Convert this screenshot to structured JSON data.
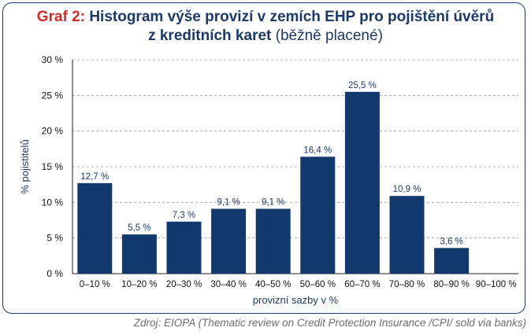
{
  "title": {
    "label": "Graf 2:",
    "main_line1": "Histogram výše provizí v zemích EHP pro pojištění úvěrů",
    "main_line2": "z kreditních karet",
    "sub": "(běžně placené)"
  },
  "source": "Zdroj: EIOPA (Thematic review on Credit Protection Insurance /CPI/ sold via banks)",
  "colors": {
    "bar": "#12396e",
    "title": "#1b3a6b",
    "accent": "#d42a24",
    "grid": "#9a9a9a"
  },
  "chart_data": {
    "type": "bar",
    "title": "Histogram výše provizí v zemích EHP pro pojištění úvěrů z kreditních karet (běžně placené)",
    "xlabel": "provizní sazby v %",
    "ylabel": "% pojistitelů",
    "ylim": [
      0,
      30
    ],
    "yticks": [
      0,
      5,
      10,
      15,
      20,
      25,
      30
    ],
    "ytick_labels": [
      "0 %",
      "5 %",
      "10 %",
      "15 %",
      "20 %",
      "25 %",
      "30 %"
    ],
    "grid": true,
    "categories": [
      "0–10 %",
      "10–20 %",
      "20–30 %",
      "30–40 %",
      "40–50 %",
      "50–60 %",
      "60–70 %",
      "70–80 %",
      "80–90 %",
      "90–100 %"
    ],
    "values": [
      12.7,
      5.5,
      7.3,
      9.1,
      9.1,
      16.4,
      25.5,
      10.9,
      3.6,
      null
    ],
    "value_labels": [
      "12,7 %",
      "5,5 %",
      "7,3 %",
      "9,1 %",
      "9,1 %",
      "16,4 %",
      "25,5 %",
      "10,9 %",
      "3,6 %",
      ""
    ]
  }
}
